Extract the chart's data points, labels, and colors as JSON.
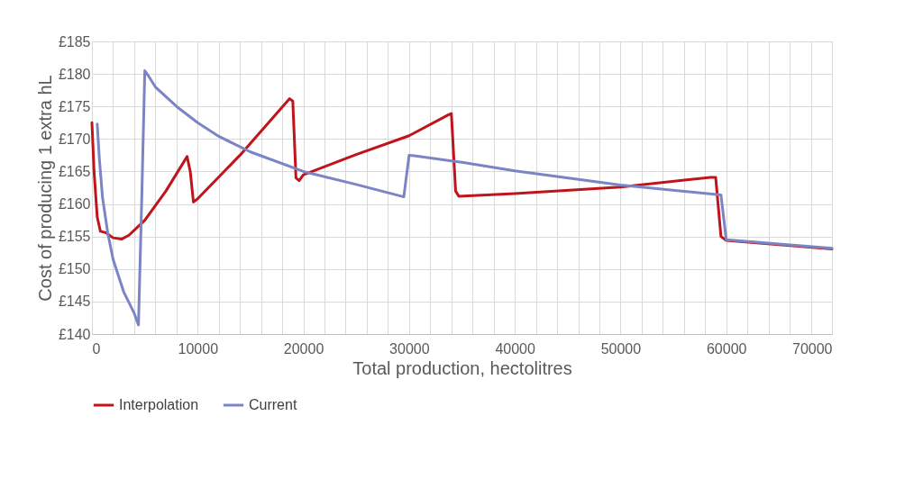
{
  "chart_data": {
    "type": "line",
    "xlabel": "Total production, hectolitres",
    "ylabel": "Cost of producing 1 extra hL",
    "xlim": [
      0,
      70000
    ],
    "ylim": [
      140,
      185
    ],
    "xticks": [
      0,
      {
        "value": 2000,
        "label": null
      },
      {
        "value": 4000,
        "label": null
      },
      {
        "value": 6000,
        "label": null
      },
      {
        "value": 8000,
        "label": null
      },
      10000,
      {
        "value": 12000,
        "label": null
      },
      {
        "value": 14000,
        "label": null
      },
      {
        "value": 16000,
        "label": null
      },
      {
        "value": 18000,
        "label": null
      },
      20000,
      {
        "value": 22000,
        "label": null
      },
      {
        "value": 24000,
        "label": null
      },
      {
        "value": 26000,
        "label": null
      },
      {
        "value": 28000,
        "label": null
      },
      30000,
      {
        "value": 32000,
        "label": null
      },
      {
        "value": 34000,
        "label": null
      },
      {
        "value": 36000,
        "label": null
      },
      {
        "value": 38000,
        "label": null
      },
      40000,
      {
        "value": 42000,
        "label": null
      },
      {
        "value": 44000,
        "label": null
      },
      {
        "value": 46000,
        "label": null
      },
      {
        "value": 48000,
        "label": null
      },
      50000,
      {
        "value": 52000,
        "label": null
      },
      {
        "value": 54000,
        "label": null
      },
      {
        "value": 56000,
        "label": null
      },
      {
        "value": 58000,
        "label": null
      },
      60000,
      {
        "value": 62000,
        "label": null
      },
      {
        "value": 64000,
        "label": null
      },
      {
        "value": 66000,
        "label": null
      },
      {
        "value": 68000,
        "label": null
      },
      70000
    ],
    "yticks": [
      {
        "value": 140,
        "label": "£140"
      },
      {
        "value": 145,
        "label": "£145"
      },
      {
        "value": 150,
        "label": "£150"
      },
      {
        "value": 155,
        "label": "£155"
      },
      {
        "value": 160,
        "label": "£160"
      },
      {
        "value": 165,
        "label": "£165"
      },
      {
        "value": 170,
        "label": "£170"
      },
      {
        "value": 175,
        "label": "£175"
      },
      {
        "value": 180,
        "label": "£180"
      },
      {
        "value": 185,
        "label": "£185"
      }
    ],
    "grid": true,
    "legend": "bottom",
    "marker": "none",
    "line_style": "solid",
    "series": [
      {
        "name": "Interpolation",
        "color": "#c0141c",
        "x": [
          0,
          200,
          500,
          800,
          1300,
          2000,
          2800,
          3500,
          5000,
          7000,
          8700,
          9000,
          9300,
          9600,
          10000,
          14000,
          18700,
          19000,
          19300,
          19600,
          20000,
          25000,
          30000,
          33700,
          34000,
          34400,
          34700,
          40000,
          50000,
          58500,
          59000,
          59500,
          60000,
          70000
        ],
        "values": [
          172.5,
          165,
          158,
          155.8,
          155.6,
          154.8,
          154.6,
          155.2,
          157.5,
          162,
          166.5,
          167.3,
          165,
          160.3,
          160.8,
          167.5,
          176.2,
          175.8,
          164,
          163.6,
          164.5,
          167.6,
          170.5,
          173.7,
          173.9,
          162,
          161.2,
          161.6,
          162.6,
          164.1,
          164.1,
          155,
          154.4,
          153.1
        ]
      },
      {
        "name": "Current",
        "color": "#7b84c4",
        "x": [
          500,
          700,
          1000,
          1500,
          2000,
          3000,
          4000,
          4400,
          4700,
          5000,
          5300,
          6000,
          8000,
          10000,
          12000,
          15000,
          20000,
          25000,
          29500,
          30000,
          30500,
          35000,
          40000,
          50000,
          59500,
          60000,
          70000
        ],
        "values": [
          172.3,
          167,
          161,
          155.5,
          151.5,
          146.5,
          143.2,
          141.4,
          160,
          180.5,
          179.8,
          178,
          175,
          172.5,
          170.4,
          168,
          165,
          163,
          161.1,
          167.5,
          167.4,
          166.4,
          165.1,
          162.9,
          161.4,
          154.5,
          153.2
        ]
      }
    ]
  }
}
